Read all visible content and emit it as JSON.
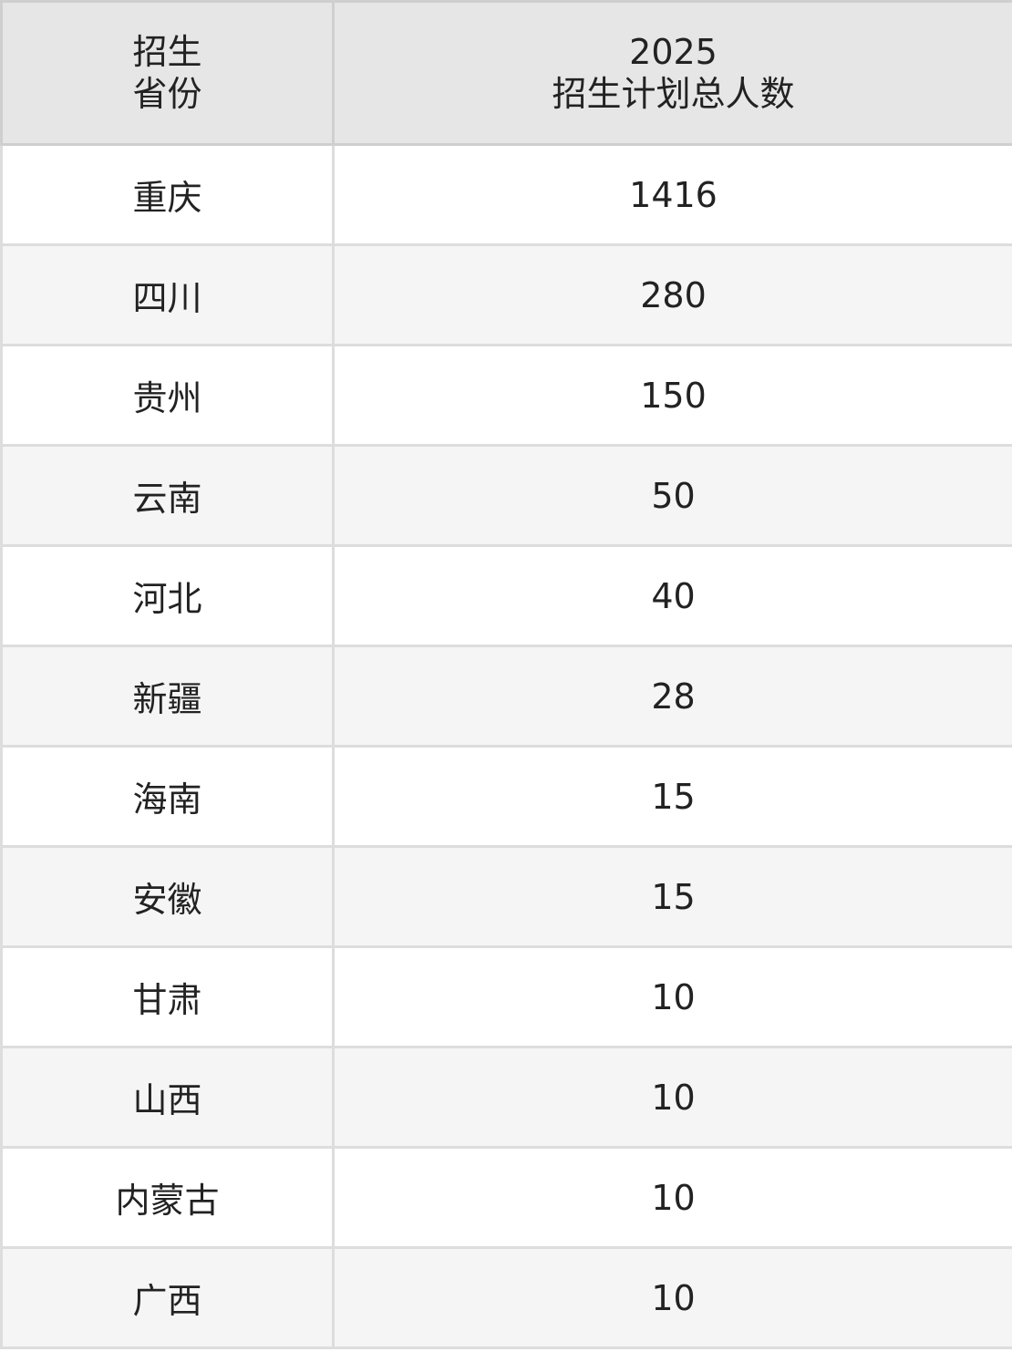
{
  "table": {
    "headers": [
      {
        "lines": [
          "招生",
          "省份"
        ]
      },
      {
        "lines": [
          "2025",
          "招生计划总人数"
        ]
      }
    ],
    "rows": [
      {
        "province": "重庆",
        "count": "1416"
      },
      {
        "province": "四川",
        "count": "280"
      },
      {
        "province": "贵州",
        "count": "150"
      },
      {
        "province": "云南",
        "count": "50"
      },
      {
        "province": "河北",
        "count": "40"
      },
      {
        "province": "新疆",
        "count": "28"
      },
      {
        "province": "海南",
        "count": "15"
      },
      {
        "province": "安徽",
        "count": "15"
      },
      {
        "province": "甘肃",
        "count": "10"
      },
      {
        "province": "山西",
        "count": "10"
      },
      {
        "province": "内蒙古",
        "count": "10"
      },
      {
        "province": "广西",
        "count": "10"
      }
    ]
  }
}
